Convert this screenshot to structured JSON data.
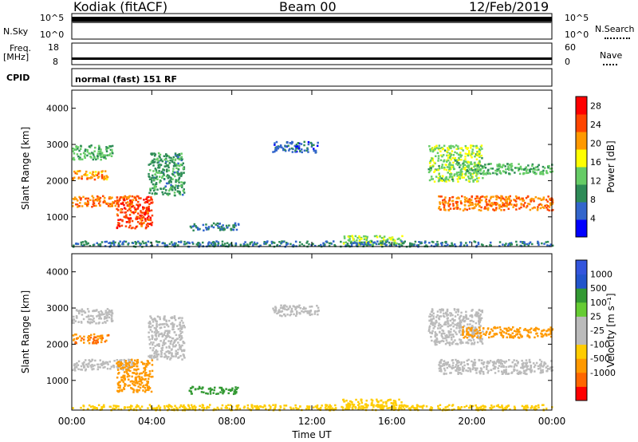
{
  "header": {
    "station": "Kodiak (fitACF)",
    "beam": "Beam 00",
    "date": "12/Feb/2019"
  },
  "top_panel": {
    "left_label": "N.Sky",
    "left_ticks": [
      "10^5",
      "10^0"
    ],
    "right_label": "N.Search",
    "right_ticks": [
      "10^5",
      "10^0"
    ]
  },
  "freq_panel": {
    "left_label_line1": "Freq.",
    "left_label_line2": "[MHz]",
    "left_ticks": [
      "18",
      "8"
    ],
    "right_label": "Nave",
    "right_ticks": [
      "60",
      "0"
    ]
  },
  "cpid_panel": {
    "label": "CPID",
    "value": "normal (fast) 151 RF"
  },
  "colors": {
    "power_scale": [
      "#0000ff",
      "#3366cc",
      "#2e8b57",
      "#66cc66",
      "#ffff00",
      "#ff9900",
      "#ff4500",
      "#ff0000"
    ],
    "velocity_scale": [
      "#ff0000",
      "#ff6600",
      "#ff9900",
      "#ffcc00",
      "#bbbbbb",
      "#bbbbbb",
      "#66cc33",
      "#339933",
      "#2255cc",
      "#3355dd"
    ],
    "ground_scatter": "#bbbbbb"
  },
  "chart_data": [
    {
      "type": "heatmap",
      "title": "",
      "xlabel": "Time UT",
      "ylabel": "Slant Range [km]",
      "xlim": [
        "00:00",
        "24:00"
      ],
      "ylim": [
        180,
        4500
      ],
      "x_ticks": [
        "00:00",
        "04:00",
        "08:00",
        "12:00",
        "16:00",
        "20:00",
        "00:00"
      ],
      "y_ticks": [
        "1000",
        "2000",
        "3000",
        "4000"
      ],
      "colorbar": {
        "label": "Power [dB]",
        "ticks": [
          "4",
          "8",
          "12",
          "16",
          "20",
          "24",
          "28"
        ],
        "range": [
          0,
          30
        ]
      },
      "regions": [
        {
          "t0": 0.0,
          "t1": 3.1,
          "r0": 1300,
          "r1": 1600,
          "value": 22
        },
        {
          "t0": 0.0,
          "t1": 1.8,
          "r0": 2050,
          "r1": 2300,
          "value": 21
        },
        {
          "t0": 0.0,
          "t1": 2.0,
          "r0": 2600,
          "r1": 3000,
          "value": 12
        },
        {
          "t0": 2.2,
          "t1": 4.0,
          "r0": 700,
          "r1": 1600,
          "value": 25
        },
        {
          "t0": 3.8,
          "t1": 5.6,
          "r0": 1600,
          "r1": 2800,
          "value": 10
        },
        {
          "t0": 5.8,
          "t1": 8.3,
          "r0": 650,
          "r1": 850,
          "value": 7
        },
        {
          "t0": 10.0,
          "t1": 12.3,
          "r0": 2800,
          "r1": 3100,
          "value": 6
        },
        {
          "t0": 13.5,
          "t1": 16.5,
          "r0": 250,
          "r1": 500,
          "value": 14
        },
        {
          "t0": 17.8,
          "t1": 20.5,
          "r0": 2000,
          "r1": 3000,
          "value": 14
        },
        {
          "t0": 18.3,
          "t1": 24.0,
          "r0": 1200,
          "r1": 1600,
          "value": 22
        },
        {
          "t0": 19.5,
          "t1": 24.0,
          "r0": 2200,
          "r1": 2500,
          "value": 12
        },
        {
          "t0": 0.0,
          "t1": 24.0,
          "r0": 200,
          "r1": 350,
          "value": 8
        }
      ]
    },
    {
      "type": "heatmap",
      "title": "",
      "xlabel": "Time UT",
      "ylabel": "Slant Range [km]",
      "xlim": [
        "00:00",
        "24:00"
      ],
      "ylim": [
        180,
        4500
      ],
      "x_ticks": [
        "00:00",
        "04:00",
        "08:00",
        "12:00",
        "16:00",
        "20:00",
        "00:00"
      ],
      "y_ticks": [
        "1000",
        "2000",
        "3000",
        "4000"
      ],
      "colorbar": {
        "label": "Velocity [m s⁻¹]",
        "ticks": [
          "1000",
          "500",
          "100",
          "25",
          "-25",
          "-100",
          "-500",
          "-1000"
        ]
      },
      "regions": [
        {
          "t0": 0.0,
          "t1": 3.1,
          "r0": 1300,
          "r1": 1600,
          "value": 0
        },
        {
          "t0": 0.0,
          "t1": 1.8,
          "r0": 2050,
          "r1": 2300,
          "value": -500
        },
        {
          "t0": 0.0,
          "t1": 2.0,
          "r0": 2600,
          "r1": 3000,
          "value": 0
        },
        {
          "t0": 2.2,
          "t1": 4.0,
          "r0": 700,
          "r1": 1600,
          "value": -120
        },
        {
          "t0": 3.8,
          "t1": 5.6,
          "r0": 1600,
          "r1": 2800,
          "value": 0
        },
        {
          "t0": 5.8,
          "t1": 8.3,
          "r0": 650,
          "r1": 850,
          "value": 150
        },
        {
          "t0": 10.0,
          "t1": 12.3,
          "r0": 2800,
          "r1": 3100,
          "value": 0
        },
        {
          "t0": 13.5,
          "t1": 16.5,
          "r0": 250,
          "r1": 500,
          "value": -40
        },
        {
          "t0": 17.8,
          "t1": 20.5,
          "r0": 2000,
          "r1": 3000,
          "value": 0
        },
        {
          "t0": 18.3,
          "t1": 24.0,
          "r0": 1200,
          "r1": 1600,
          "value": 0
        },
        {
          "t0": 19.5,
          "t1": 24.0,
          "r0": 2200,
          "r1": 2500,
          "value": -150
        },
        {
          "t0": 0.0,
          "t1": 24.0,
          "r0": 200,
          "r1": 350,
          "value": -60
        }
      ]
    }
  ]
}
